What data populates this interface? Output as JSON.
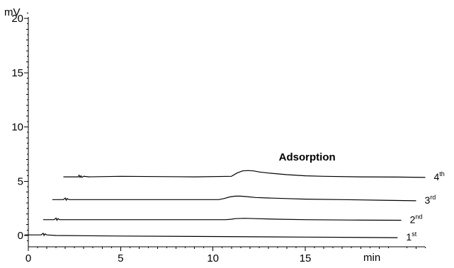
{
  "chart_data": {
    "type": "line",
    "title": "",
    "y_unit": "mV",
    "x_unit": "min",
    "xlim": [
      0,
      22
    ],
    "ylim": [
      -1,
      21
    ],
    "x_ticks": [
      0,
      5,
      10,
      15
    ],
    "y_ticks": [
      0,
      5,
      10,
      15,
      20
    ],
    "x_tick_labels": [
      "0",
      "5",
      "10",
      "15"
    ],
    "y_tick_labels": [
      "0",
      "5",
      "10",
      "15",
      "20"
    ],
    "annotation": {
      "text": "Adsorption",
      "x": 15.1,
      "y": 6.9
    },
    "grid": false,
    "series": [
      {
        "name": "1",
        "suffix": "st",
        "x": [
          -0.2,
          0.7,
          0.8,
          0.85,
          0.9,
          1.0,
          1.5,
          5,
          10,
          15,
          20,
          19.5
        ],
        "y": [
          0.05,
          0.05,
          0.2,
          0.0,
          0.15,
          0.05,
          0.0,
          -0.05,
          -0.1,
          -0.15,
          -0.2,
          -0.2
        ]
      },
      {
        "name": "2",
        "suffix": "nd",
        "x": [
          0.8,
          1.4,
          1.5,
          1.55,
          1.6,
          1.7,
          2.0,
          5,
          10,
          10.7,
          11.0,
          11.2,
          11.7,
          12.3,
          13.5,
          15,
          17.5,
          20.2
        ],
        "y": [
          1.45,
          1.45,
          1.6,
          1.4,
          1.55,
          1.45,
          1.45,
          1.45,
          1.45,
          1.45,
          1.5,
          1.55,
          1.58,
          1.55,
          1.5,
          1.45,
          1.42,
          1.4
        ]
      },
      {
        "name": "3",
        "suffix": "rd",
        "x": [
          1.3,
          1.9,
          2.0,
          2.05,
          2.1,
          2.2,
          2.4,
          5,
          9,
          10.3,
          10.6,
          10.9,
          11.2,
          11.5,
          11.8,
          12.3,
          13.0,
          14.0,
          15.0,
          17.0,
          19.0,
          21.0
        ],
        "y": [
          3.3,
          3.3,
          3.45,
          3.25,
          3.4,
          3.3,
          3.3,
          3.3,
          3.3,
          3.3,
          3.4,
          3.55,
          3.62,
          3.62,
          3.58,
          3.5,
          3.45,
          3.4,
          3.35,
          3.3,
          3.25,
          3.2
        ]
      },
      {
        "name": "4",
        "suffix": "th",
        "x": [
          1.9,
          2.7,
          2.75,
          2.8,
          2.85,
          2.9,
          3.0,
          3.3,
          5,
          9,
          11.0,
          11.3,
          11.6,
          11.9,
          12.2,
          12.5,
          13.0,
          14.0,
          15.0,
          16.0,
          18.0,
          20.0,
          21.5
        ],
        "y": [
          5.4,
          5.4,
          5.55,
          5.35,
          5.5,
          5.35,
          5.45,
          5.4,
          5.45,
          5.4,
          5.45,
          5.75,
          5.95,
          5.98,
          5.95,
          5.85,
          5.75,
          5.6,
          5.5,
          5.45,
          5.4,
          5.38,
          5.35
        ]
      }
    ]
  }
}
